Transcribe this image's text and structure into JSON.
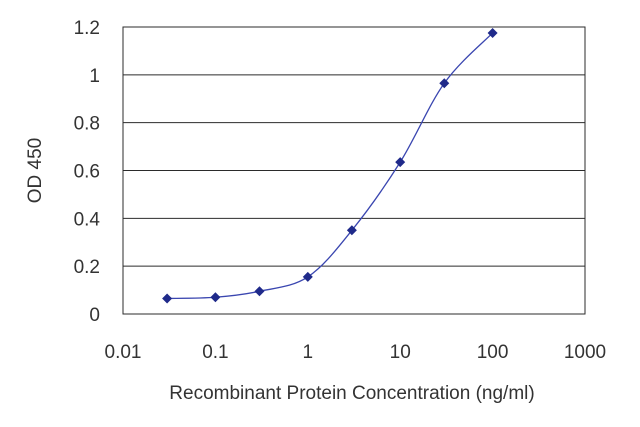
{
  "chart_data": {
    "type": "line",
    "title": "",
    "xlabel": "Recombinant Protein Concentration (ng/ml)",
    "ylabel": "OD 450",
    "x_scale": "log",
    "xlim": [
      0.01,
      1000
    ],
    "ylim": [
      0,
      1.2
    ],
    "x_ticks": [
      "0.01",
      "0.1",
      "1",
      "10",
      "100",
      "1000"
    ],
    "y_ticks": [
      "0",
      "0.2",
      "0.4",
      "0.6",
      "0.8",
      "1",
      "1.2"
    ],
    "grid": "horizontal",
    "legend": "none",
    "series": [
      {
        "x": [
          0.03,
          0.1,
          0.3,
          1,
          3,
          10,
          30,
          100
        ],
        "y": [
          0.065,
          0.07,
          0.095,
          0.155,
          0.35,
          0.635,
          0.965,
          1.175
        ]
      }
    ],
    "colors": {
      "series": "#1f2a8a",
      "line": "#3a46b0",
      "grid": "#2b2b2b",
      "text": "#333333"
    }
  }
}
